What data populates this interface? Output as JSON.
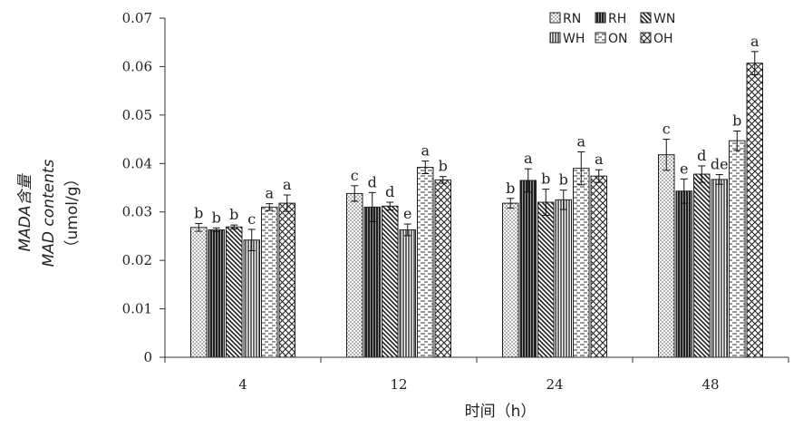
{
  "chart_data": {
    "type": "bar",
    "xlabel": "时间（h）",
    "ylabel_lines": [
      "MADA含量",
      "MAD contents",
      "（umol/g）"
    ],
    "categories": [
      "4",
      "12",
      "24",
      "48"
    ],
    "ylim": [
      0,
      0.07
    ],
    "yticks": [
      "0",
      "0.01",
      "0.02",
      "0.03",
      "0.04",
      "0.05",
      "0.06",
      "0.07"
    ],
    "grid": false,
    "legend_position": "top-right",
    "series": [
      {
        "name": "RN",
        "pattern": "dots",
        "color": "#d0d0d0",
        "values": [
          0.0268,
          0.0338,
          0.0318,
          0.0418
        ],
        "errors": [
          0.0008,
          0.0016,
          0.001,
          0.0032
        ],
        "labels": [
          "b",
          "c",
          "b",
          "c"
        ]
      },
      {
        "name": "RH",
        "pattern": "vlines",
        "color": "#3a3a3a",
        "values": [
          0.0263,
          0.031,
          0.0365,
          0.0343
        ],
        "errors": [
          0.0004,
          0.003,
          0.0024,
          0.0025
        ],
        "labels": [
          "b",
          "d",
          "a",
          "e"
        ]
      },
      {
        "name": "WN",
        "pattern": "bdiag",
        "color": "#ffffff",
        "values": [
          0.0269,
          0.0312,
          0.032,
          0.0378
        ],
        "errors": [
          0.0004,
          0.0008,
          0.0027,
          0.0017
        ],
        "labels": [
          "b",
          "d",
          "b",
          "d"
        ]
      },
      {
        "name": "WH",
        "pattern": "vlines",
        "color": "#8a8a8a",
        "values": [
          0.0242,
          0.0263,
          0.0325,
          0.0367
        ],
        "errors": [
          0.0022,
          0.0012,
          0.002,
          0.001
        ],
        "labels": [
          "c",
          "e",
          "b",
          "de"
        ]
      },
      {
        "name": "ON",
        "pattern": "hdash",
        "color": "#ffffff",
        "values": [
          0.031,
          0.0392,
          0.039,
          0.0447
        ],
        "errors": [
          0.0007,
          0.0013,
          0.0034,
          0.002
        ],
        "labels": [
          "a",
          "a",
          "a",
          "b"
        ]
      },
      {
        "name": "OH",
        "pattern": "cross",
        "color": "#ffffff",
        "values": [
          0.0318,
          0.0366,
          0.0374,
          0.0607
        ],
        "errors": [
          0.0017,
          0.0007,
          0.0013,
          0.0024
        ],
        "labels": [
          "a",
          "b",
          "a",
          "a"
        ]
      }
    ]
  }
}
